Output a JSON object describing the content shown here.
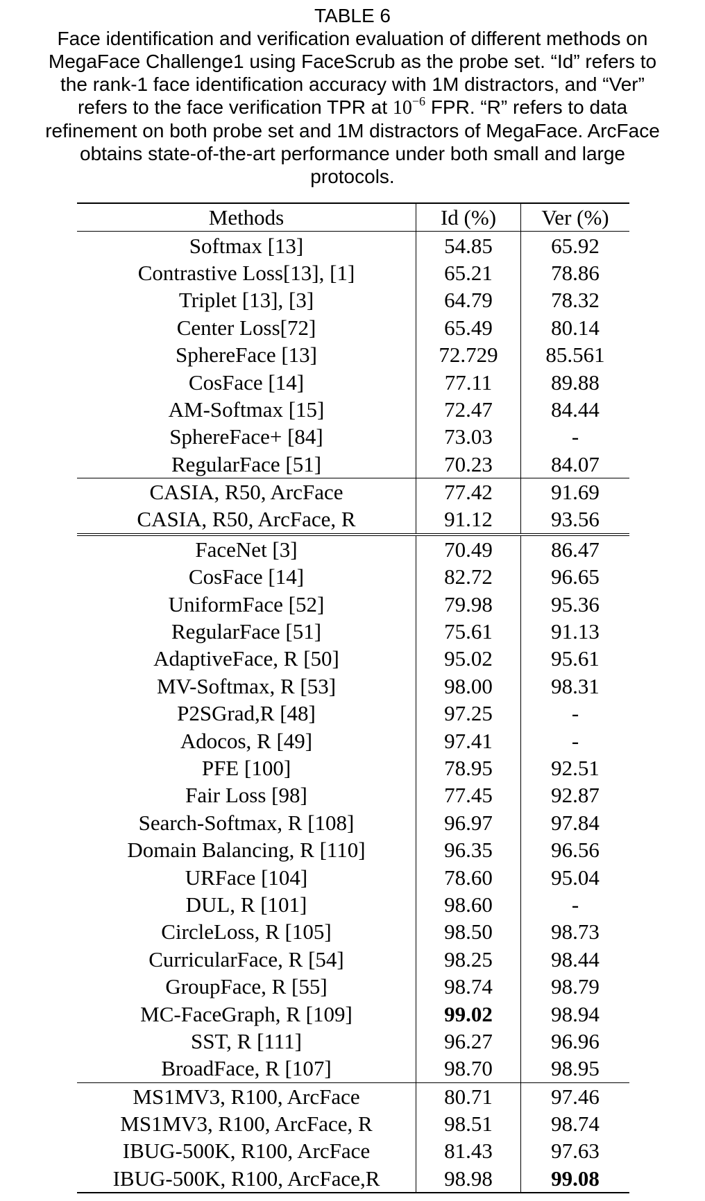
{
  "caption": {
    "label": "TABLE 6",
    "line1": "Face identification and verification evaluation of different methods on",
    "line2": "MegaFace Challenge1 using FaceScrub as the probe set. “Id” refers to",
    "line3": "the rank-1 face identification accuracy with 1M distractors, and “Ver”",
    "line4_pre": "refers to the face verification TPR at ",
    "line4_base": "10",
    "line4_exp": "−6",
    "line4_post": " FPR. “R” refers to data",
    "line5": "refinement on both probe set and 1M distractors of MegaFace. ArcFace",
    "line6": "obtains state-of-the-art performance under both small and large",
    "line7": "protocols."
  },
  "table": {
    "headers": {
      "method": "Methods",
      "id": "Id (%)",
      "ver": "Ver (%)"
    },
    "rows": [
      {
        "method": "Softmax [13]",
        "id": "54.85",
        "ver": "65.92"
      },
      {
        "method": "Contrastive Loss[13], [1]",
        "id": "65.21",
        "ver": "78.86"
      },
      {
        "method": "Triplet [13], [3]",
        "id": "64.79",
        "ver": "78.32"
      },
      {
        "method": "Center Loss[72]",
        "id": "65.49",
        "ver": "80.14"
      },
      {
        "method": "SphereFace [13]",
        "id": "72.729",
        "ver": "85.561"
      },
      {
        "method": "CosFace [14]",
        "id": "77.11",
        "ver": "89.88"
      },
      {
        "method": "AM-Softmax [15]",
        "id": "72.47",
        "ver": "84.44"
      },
      {
        "method": "SphereFace+ [84]",
        "id": "73.03",
        "ver": "-"
      },
      {
        "method": "RegularFace [51]",
        "id": "70.23",
        "ver": "84.07"
      },
      {
        "method": "CASIA, R50, ArcFace",
        "id": "77.42",
        "ver": "91.69"
      },
      {
        "method": "CASIA, R50, ArcFace, R",
        "id": "91.12",
        "ver": "93.56"
      },
      {
        "method": "FaceNet [3]",
        "id": "70.49",
        "ver": "86.47"
      },
      {
        "method": "CosFace [14]",
        "id": "82.72",
        "ver": "96.65"
      },
      {
        "method": "UniformFace [52]",
        "id": "79.98",
        "ver": "95.36"
      },
      {
        "method": "RegularFace [51]",
        "id": "75.61",
        "ver": "91.13"
      },
      {
        "method": "AdaptiveFace, R [50]",
        "id": "95.02",
        "ver": "95.61"
      },
      {
        "method": "MV-Softmax, R [53]",
        "id": "98.00",
        "ver": "98.31"
      },
      {
        "method": "P2SGrad,R [48]",
        "id": "97.25",
        "ver": "-"
      },
      {
        "method": "Adocos, R [49]",
        "id": "97.41",
        "ver": "-"
      },
      {
        "method": "PFE [100]",
        "id": "78.95",
        "ver": "92.51"
      },
      {
        "method": "Fair Loss [98]",
        "id": "77.45",
        "ver": "92.87"
      },
      {
        "method": "Search-Softmax, R [108]",
        "id": "96.97",
        "ver": "97.84"
      },
      {
        "method": "Domain Balancing, R [110]",
        "id": "96.35",
        "ver": "96.56"
      },
      {
        "method": "URFace [104]",
        "id": "78.60",
        "ver": "95.04"
      },
      {
        "method": "DUL, R [101]",
        "id": "98.60",
        "ver": "-"
      },
      {
        "method": "CircleLoss, R [105]",
        "id": "98.50",
        "ver": "98.73"
      },
      {
        "method": "CurricularFace, R [54]",
        "id": "98.25",
        "ver": "98.44"
      },
      {
        "method": "GroupFace, R [55]",
        "id": "98.74",
        "ver": "98.79"
      },
      {
        "method": "MC-FaceGraph, R [109]",
        "id": "99.02",
        "ver": "98.94"
      },
      {
        "method": "SST, R [111]",
        "id": "96.27",
        "ver": "96.96"
      },
      {
        "method": "BroadFace, R [107]",
        "id": "98.70",
        "ver": "98.95"
      },
      {
        "method": "MS1MV3, R100, ArcFace",
        "id": "80.71",
        "ver": "97.46"
      },
      {
        "method": "MS1MV3, R100, ArcFace, R",
        "id": "98.51",
        "ver": "98.74"
      },
      {
        "method": "IBUG-500K, R100, ArcFace",
        "id": "81.43",
        "ver": "97.63"
      },
      {
        "method": "IBUG-500K, R100, ArcFace,R",
        "id": "98.98",
        "ver": "99.08"
      }
    ]
  }
}
